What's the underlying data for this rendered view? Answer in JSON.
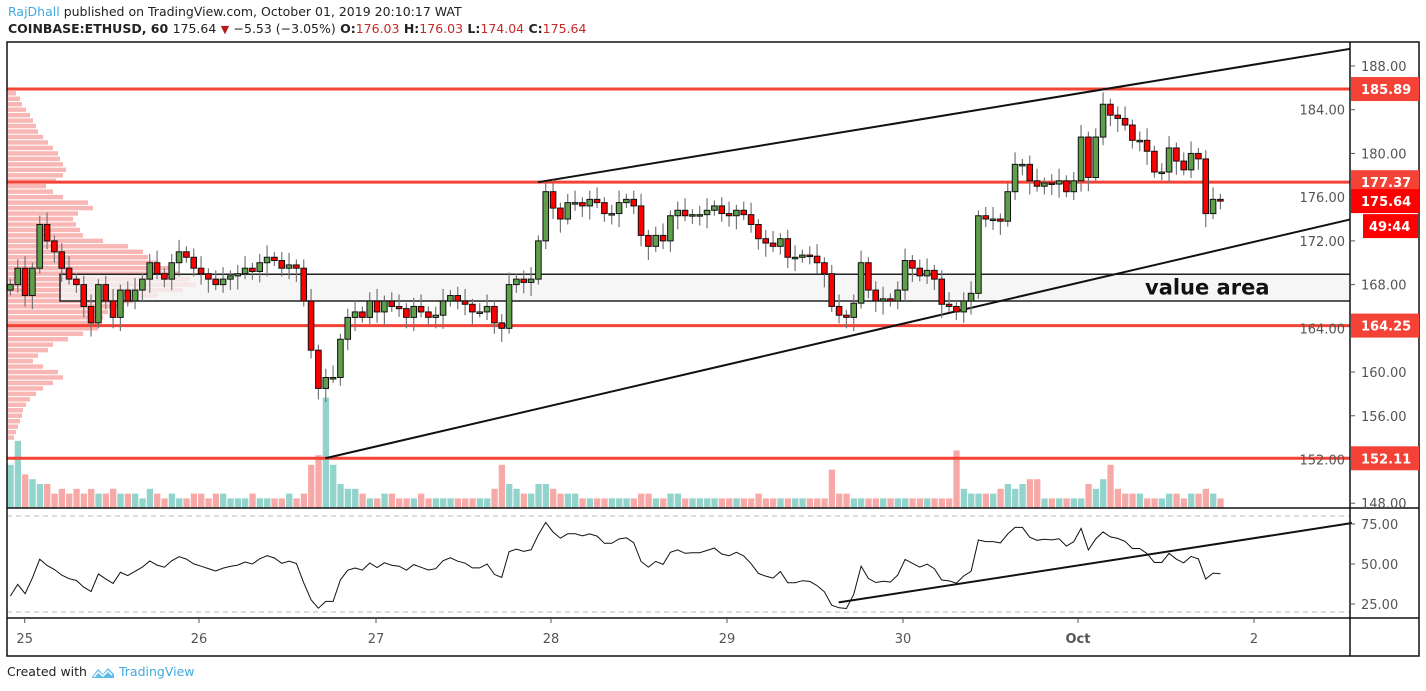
{
  "header": {
    "author": "RajDhall",
    "published": "published on TradingView.com, October 01, 2019 20:10:17 WAT",
    "symbol": "COINBASE:ETHUSD, 60",
    "last": "175.64",
    "change": "−5.53 (−3.05%)",
    "o_label": "O:",
    "o": "176.03",
    "h_label": "H:",
    "h": "176.03",
    "l_label": "L:",
    "l": "174.04",
    "c_label": "C:",
    "c": "175.64",
    "direction_icon": "down-triangle-icon"
  },
  "footer": {
    "created_with": "Created with",
    "brand": "TradingView",
    "logo_icon": "tradingview-cloud-logo"
  },
  "colors": {
    "up": "#5f9e4b",
    "down": "#ff0000",
    "level_line": "#f44336",
    "level_label": "#f44336",
    "last_price_label": "#ff0000",
    "volume_up": "#92d3cc",
    "volume_down": "#f7a9a7",
    "profile": "#f7a9a7",
    "value_area_fill": "#f4f4f4"
  },
  "chart_data": {
    "type": "candlestick",
    "symbol": "COINBASE:ETHUSD",
    "interval": "60",
    "ylim": [
      146.5,
      190
    ],
    "y_ticks": [
      "188.00",
      "184.00",
      "180.00",
      "176.00",
      "172.00",
      "168.00",
      "164.00",
      "160.00",
      "156.00",
      "152.00",
      "148.00"
    ],
    "x_ticks": [
      "25",
      "26",
      "27",
      "28",
      "29",
      "30",
      "Oct",
      "2"
    ],
    "grid": false,
    "close": [
      168,
      169.5,
      167,
      169.5,
      173.5,
      172,
      171,
      169.5,
      168.5,
      168,
      166,
      164.5,
      168,
      166.5,
      165,
      167.5,
      166.5,
      167.5,
      168.5,
      170,
      169,
      168.5,
      170,
      171,
      170.5,
      169.5,
      169,
      168.5,
      168,
      168.5,
      168.8,
      169,
      169.5,
      169.2,
      170,
      170.5,
      170.2,
      169.5,
      169.8,
      169.5,
      166.5,
      162,
      158.5,
      159.5,
      159.5,
      163,
      165,
      165.5,
      165,
      166.5,
      165.5,
      166.5,
      166,
      165.8,
      165,
      166,
      165.5,
      165,
      165.2,
      166.5,
      167,
      166.5,
      166.2,
      165.5,
      165.5,
      166,
      164.5,
      164,
      168,
      168.5,
      168.2,
      168.5,
      172,
      176.5,
      175,
      174,
      175.5,
      175.5,
      175.2,
      175.8,
      175.5,
      174.5,
      174.5,
      175.5,
      175.8,
      175.2,
      172.5,
      171.5,
      172.5,
      172,
      174.3,
      174.8,
      174.3,
      174.4,
      174.4,
      174.8,
      175.2,
      174.5,
      174.3,
      174.8,
      174.4,
      173.5,
      172.2,
      171.8,
      171.5,
      172.2,
      170.5,
      170.5,
      170.7,
      170.6,
      170,
      169,
      166,
      165.2,
      165,
      166.3,
      170,
      167.5,
      166.5,
      166.7,
      166.5,
      167.5,
      170.2,
      169.5,
      168.8,
      169.3,
      168.5,
      166.2,
      166,
      165.5,
      166.5,
      167.2,
      174.3,
      174,
      174,
      173.8,
      176.5,
      179,
      179,
      177.5,
      177,
      177.3,
      177.2,
      177.5,
      176.5,
      177.5,
      181.5,
      177.8,
      181.5,
      184.5,
      183.5,
      183.2,
      182.6,
      181.2,
      181.2,
      180.2,
      178.3,
      178.3,
      180.5,
      179.3,
      178.5,
      180,
      179.5,
      174.5,
      175.8,
      175.64
    ],
    "volume": [
      9,
      14,
      7,
      6,
      5,
      5,
      3,
      4,
      3,
      4,
      3,
      4,
      3,
      3,
      4,
      3,
      3,
      3,
      2,
      4,
      3,
      2,
      3,
      2,
      2,
      3,
      3,
      2,
      3,
      3,
      2,
      2,
      2,
      3,
      2,
      2,
      2,
      2,
      3,
      2,
      3,
      9,
      11,
      23,
      9,
      5,
      4,
      4,
      3,
      2,
      2,
      3,
      3,
      2,
      2,
      2,
      3,
      2,
      2,
      2,
      2,
      2,
      2,
      2,
      2,
      2,
      4,
      9,
      5,
      4,
      3,
      3,
      5,
      5,
      4,
      3,
      3,
      3,
      2,
      2,
      2,
      2,
      2,
      2,
      2,
      2,
      3,
      3,
      2,
      2,
      3,
      3,
      2,
      2,
      2,
      2,
      2,
      2,
      2,
      2,
      2,
      2,
      3,
      2,
      2,
      2,
      2,
      2,
      2,
      2,
      2,
      2,
      8,
      3,
      3,
      2,
      2,
      2,
      2,
      2,
      2,
      2,
      2,
      2,
      2,
      2,
      2,
      2,
      2,
      12,
      4,
      3,
      3,
      3,
      3,
      4,
      5,
      4,
      5,
      6,
      6,
      2,
      2,
      2,
      2,
      2,
      2,
      5,
      4,
      6,
      9,
      4,
      3,
      3,
      3,
      2,
      2,
      2,
      3,
      3,
      2,
      3,
      3,
      4,
      3,
      2
    ],
    "volume_profile": {
      "prices": [
        185.5,
        185,
        184.5,
        184,
        183.5,
        183,
        182.5,
        182,
        181.5,
        181,
        180.5,
        180,
        179.5,
        179,
        178.5,
        178,
        177.5,
        177,
        176.5,
        176,
        175.5,
        175,
        174.5,
        174,
        173.5,
        173,
        172.5,
        172,
        171.5,
        171,
        170.5,
        170,
        169.5,
        169,
        168.5,
        168,
        167.5,
        167,
        166.5,
        166,
        165.5,
        165,
        164.5,
        164,
        163.5,
        163,
        162.5,
        162,
        161.5,
        161,
        160.5,
        160,
        159.5,
        159,
        158.5,
        158,
        157.5,
        157,
        156.5,
        156,
        155.5,
        155,
        154.5,
        154
      ],
      "volumes": [
        8,
        12,
        14,
        18,
        22,
        25,
        28,
        30,
        35,
        40,
        45,
        50,
        52,
        55,
        58,
        55,
        48,
        38,
        45,
        55,
        80,
        85,
        70,
        65,
        68,
        72,
        75,
        95,
        120,
        135,
        140,
        150,
        165,
        172,
        182,
        188,
        175,
        150,
        125,
        115,
        100,
        95,
        92,
        90,
        75,
        60,
        45,
        40,
        30,
        25,
        35,
        50,
        55,
        45,
        35,
        28,
        22,
        18,
        15,
        14,
        12,
        10,
        8,
        6
      ]
    },
    "levels": [
      {
        "price": 185.89,
        "label": "185.89"
      },
      {
        "price": 177.37,
        "label": "177.37"
      },
      {
        "price": 164.25,
        "label": "164.25"
      },
      {
        "price": 152.11,
        "label": "152.11"
      }
    ],
    "last_price": {
      "price": 175.64,
      "label": "175.64",
      "countdown": "49:44"
    },
    "value_area": {
      "low": 166.5,
      "high": 168.95,
      "label": "value area"
    },
    "trendlines": [
      {
        "from": {
          "time": "2019-09-27 22:00",
          "price": 177.37
        },
        "to": {
          "time": "2019-10-02 13:00",
          "price": 189.6
        }
      },
      {
        "from": {
          "time": "2019-09-26 17:00",
          "price": 152.11
        },
        "to": {
          "time": "2019-10-02 13:00",
          "price": 174.0
        }
      }
    ],
    "rsi": {
      "ylim": [
        15,
        85
      ],
      "y_ticks": [
        "75.00",
        "50.00",
        "25.00"
      ],
      "bands": [
        80,
        20
      ],
      "trendline": {
        "from": {
          "time": "2019-09-29 15:00",
          "value": 26
        },
        "to": {
          "time": "2019-10-02 13:00",
          "value": 75.6
        }
      }
    }
  }
}
